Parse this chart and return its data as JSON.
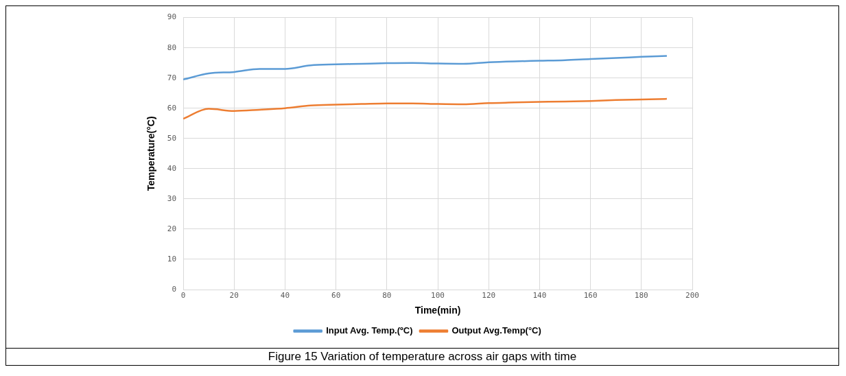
{
  "chart_data": {
    "type": "line",
    "title": "Figure 15 Variation of temperature across air gaps with time",
    "xlabel": "Time(min)",
    "ylabel": "Temperature(°C)",
    "x": [
      0,
      10,
      20,
      30,
      40,
      50,
      60,
      70,
      80,
      90,
      100,
      110,
      120,
      130,
      140,
      150,
      160,
      170,
      180,
      190
    ],
    "series": [
      {
        "name": "Input Avg. Temp.(ºC)",
        "color": "#5b9bd5",
        "values": [
          69.5,
          71.5,
          72,
          73,
          73,
          74.2,
          74.5,
          74.7,
          74.9,
          75,
          74.8,
          74.7,
          75.2,
          75.5,
          75.7,
          75.9,
          76.3,
          76.6,
          77,
          77.3
        ]
      },
      {
        "name": "Output Avg.Temp(°C)",
        "color": "#ed7d31",
        "values": [
          56.5,
          59.8,
          59.1,
          59.5,
          60,
          60.9,
          61.2,
          61.4,
          61.6,
          61.6,
          61.4,
          61.3,
          61.7,
          61.9,
          62.1,
          62.2,
          62.4,
          62.7,
          62.9,
          63.1
        ]
      }
    ],
    "xlim": [
      0,
      200
    ],
    "xticks": [
      0,
      20,
      40,
      60,
      80,
      100,
      120,
      140,
      160,
      180,
      200
    ],
    "ylim": [
      0,
      90
    ],
    "yticks": [
      0,
      10,
      20,
      30,
      40,
      50,
      60,
      70,
      80,
      90
    ],
    "grid": true,
    "legend": "bottom",
    "marker": "none",
    "line_style": "solid"
  }
}
